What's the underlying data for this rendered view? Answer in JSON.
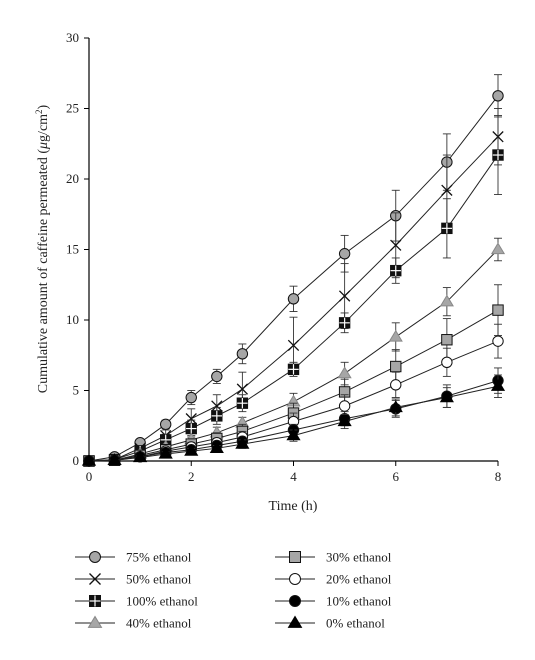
{
  "chart_data": {
    "type": "line",
    "xlabel": "Time (h)",
    "ylabel_main": "Cumulative amount of caffeine permeated (",
    "ylabel_unit_mu": "μ",
    "ylabel_unit_rest": "g/cm",
    "ylabel_sup": "2",
    "ylabel_close": ")",
    "xlim": [
      0,
      8
    ],
    "ylim": [
      0,
      30
    ],
    "xticks": [
      "0",
      "2",
      "4",
      "6",
      "8"
    ],
    "yticks": [
      "0",
      "5",
      "10",
      "15",
      "20",
      "25",
      "30"
    ],
    "grid": false,
    "legend_position": "bottom",
    "series": [
      {
        "name": "75% ethanol",
        "marker": "circle",
        "fill": "#a6a6a6",
        "x": [
          0,
          0.5,
          1,
          1.5,
          2,
          2.5,
          3,
          4,
          5,
          6,
          7,
          8
        ],
        "y": [
          0,
          0.3,
          1.3,
          2.6,
          4.5,
          6.0,
          7.6,
          11.5,
          14.7,
          17.4,
          21.2,
          25.9
        ],
        "err": [
          0,
          0.1,
          0.2,
          0.3,
          0.5,
          0.5,
          0.7,
          0.9,
          1.3,
          1.8,
          2.0,
          1.5
        ]
      },
      {
        "name": "50% ethanol",
        "marker": "x",
        "fill": "none",
        "x": [
          0,
          0.5,
          1,
          1.5,
          2,
          2.5,
          3,
          4,
          5,
          6,
          7,
          8
        ],
        "y": [
          0,
          0.1,
          0.9,
          1.8,
          3.0,
          3.9,
          5.1,
          8.2,
          11.7,
          15.3,
          19.2,
          23.0
        ],
        "err": [
          0,
          0.1,
          0.2,
          0.4,
          0.7,
          0.8,
          1.2,
          2.0,
          2.3,
          2.3,
          2.5,
          2.0
        ]
      },
      {
        "name": "100% ethanol",
        "marker": "plus-square",
        "fill": "#111111",
        "x": [
          0,
          0.5,
          1,
          1.5,
          2,
          2.5,
          3,
          4,
          5,
          6,
          7,
          8
        ],
        "y": [
          0,
          0.1,
          0.7,
          1.5,
          2.3,
          3.2,
          4.1,
          6.5,
          9.8,
          13.5,
          16.5,
          21.7
        ],
        "err": [
          0,
          0.1,
          0.2,
          0.4,
          0.6,
          0.6,
          0.6,
          0.5,
          0.7,
          0.9,
          2.1,
          2.8
        ]
      },
      {
        "name": "40% ethanol",
        "marker": "triangle",
        "fill": "#a6a6a6",
        "x": [
          0,
          0.5,
          1,
          1.5,
          2,
          2.5,
          3,
          4,
          5,
          6,
          7,
          8
        ],
        "y": [
          0,
          0.05,
          0.5,
          1.0,
          1.5,
          2.0,
          2.7,
          4.2,
          6.2,
          8.8,
          11.3,
          15.0
        ],
        "err": [
          0,
          0.05,
          0.1,
          0.2,
          0.3,
          0.4,
          0.4,
          0.6,
          0.8,
          1.0,
          1.0,
          0.8
        ]
      },
      {
        "name": "30% ethanol",
        "marker": "square",
        "fill": "#a6a6a6",
        "x": [
          0,
          0.5,
          1,
          1.5,
          2,
          2.5,
          3,
          4,
          5,
          6,
          7,
          8
        ],
        "y": [
          0,
          0.05,
          0.4,
          0.8,
          1.2,
          1.6,
          2.1,
          3.4,
          4.9,
          6.7,
          8.6,
          10.7
        ],
        "err": [
          0,
          0.05,
          0.1,
          0.2,
          0.3,
          0.4,
          0.5,
          0.7,
          0.9,
          1.2,
          1.5,
          1.8
        ]
      },
      {
        "name": "20% ethanol",
        "marker": "circle",
        "fill": "#ffffff",
        "x": [
          0,
          0.5,
          1,
          1.5,
          2,
          2.5,
          3,
          4,
          5,
          6,
          7,
          8
        ],
        "y": [
          0,
          0.05,
          0.3,
          0.7,
          1.0,
          1.3,
          1.7,
          2.8,
          3.9,
          5.4,
          7.0,
          8.5
        ],
        "err": [
          0,
          0.05,
          0.1,
          0.2,
          0.3,
          0.3,
          0.4,
          0.6,
          0.8,
          0.9,
          1.0,
          1.2
        ]
      },
      {
        "name": "10% ethanol",
        "marker": "circle",
        "fill": "#000000",
        "x": [
          0,
          0.5,
          1,
          1.5,
          2,
          2.5,
          3,
          4,
          5,
          6,
          7,
          8
        ],
        "y": [
          0,
          0.05,
          0.3,
          0.6,
          0.8,
          1.1,
          1.4,
          2.2,
          3.0,
          3.7,
          4.6,
          5.7
        ],
        "err": [
          0,
          0.05,
          0.1,
          0.15,
          0.2,
          0.3,
          0.3,
          0.4,
          0.5,
          0.6,
          0.8,
          0.9
        ]
      },
      {
        "name": "0% ethanol",
        "marker": "triangle",
        "fill": "#000000",
        "x": [
          0,
          0.5,
          1,
          1.5,
          2,
          2.5,
          3,
          4,
          5,
          6,
          7,
          8
        ],
        "y": [
          0,
          0.05,
          0.25,
          0.5,
          0.7,
          0.9,
          1.2,
          1.8,
          2.8,
          3.8,
          4.5,
          5.3
        ],
        "err": [
          0,
          0.05,
          0.1,
          0.15,
          0.2,
          0.2,
          0.3,
          0.4,
          0.5,
          0.6,
          0.7,
          0.8
        ]
      }
    ],
    "legend_order": [
      0,
      4,
      1,
      5,
      2,
      6,
      3,
      7
    ]
  }
}
